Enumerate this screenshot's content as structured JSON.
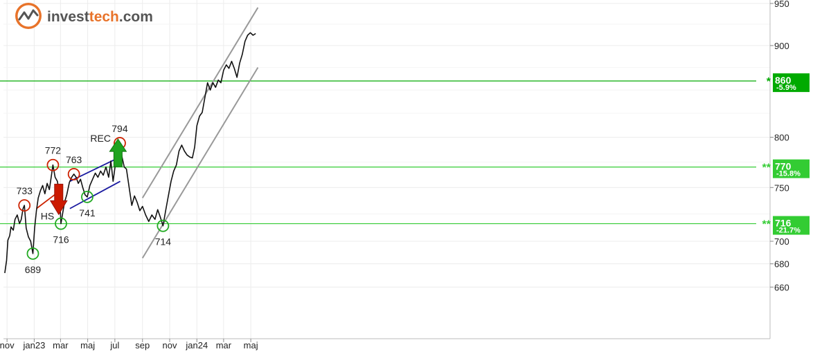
{
  "brand": {
    "name_part1": "invest",
    "name_part2": "tech",
    "name_part3": ".com",
    "color_dark": "#555555",
    "color_accent": "#e8732a"
  },
  "chart_data": {
    "type": "line",
    "y_scale": "log",
    "ylim": [
      640,
      950
    ],
    "y_ticks": [
      {
        "value": 950,
        "label": "950"
      },
      {
        "value": 900,
        "label": "900"
      },
      {
        "value": 800,
        "label": "800"
      },
      {
        "value": 750,
        "label": "750"
      },
      {
        "value": 700,
        "label": "700"
      },
      {
        "value": 680,
        "label": "680"
      },
      {
        "value": 660,
        "label": "660"
      }
    ],
    "x_ticks": [
      {
        "date": "2022-11-01",
        "label": "nov"
      },
      {
        "date": "2023-01-01",
        "label": "jan23"
      },
      {
        "date": "2023-03-01",
        "label": "mar"
      },
      {
        "date": "2023-05-01",
        "label": "maj"
      },
      {
        "date": "2023-07-01",
        "label": "jul"
      },
      {
        "date": "2023-09-01",
        "label": "sep"
      },
      {
        "date": "2023-11-01",
        "label": "nov"
      },
      {
        "date": "2024-01-01",
        "label": "jan24"
      },
      {
        "date": "2024-03-01",
        "label": "mar"
      },
      {
        "date": "2024-05-01",
        "label": "maj"
      }
    ],
    "grid": true,
    "series": [
      {
        "points": [
          [
            "2022-10-27",
            672
          ],
          [
            "2022-10-31",
            683
          ],
          [
            "2022-11-03",
            701
          ],
          [
            "2022-11-07",
            705
          ],
          [
            "2022-11-10",
            713
          ],
          [
            "2022-11-15",
            710
          ],
          [
            "2022-11-19",
            720
          ],
          [
            "2022-11-24",
            724
          ],
          [
            "2022-11-29",
            716
          ],
          [
            "2022-12-03",
            720
          ],
          [
            "2022-12-07",
            730
          ],
          [
            "2022-12-10",
            733
          ],
          [
            "2022-12-14",
            712
          ],
          [
            "2022-12-19",
            704
          ],
          [
            "2022-12-24",
            700
          ],
          [
            "2022-12-29",
            689
          ],
          [
            "2023-01-02",
            712
          ],
          [
            "2023-01-06",
            728
          ],
          [
            "2023-01-10",
            740
          ],
          [
            "2023-01-15",
            747
          ],
          [
            "2023-01-20",
            752
          ],
          [
            "2023-01-25",
            744
          ],
          [
            "2023-01-30",
            754
          ],
          [
            "2023-02-04",
            748
          ],
          [
            "2023-02-08",
            760
          ],
          [
            "2023-02-12",
            772
          ],
          [
            "2023-02-17",
            760
          ],
          [
            "2023-02-22",
            756
          ],
          [
            "2023-02-27",
            742
          ],
          [
            "2023-03-02",
            716
          ],
          [
            "2023-03-06",
            726
          ],
          [
            "2023-03-10",
            736
          ],
          [
            "2023-03-15",
            743
          ],
          [
            "2023-03-21",
            755
          ],
          [
            "2023-03-26",
            760
          ],
          [
            "2023-03-31",
            763
          ],
          [
            "2023-04-05",
            760
          ],
          [
            "2023-04-10",
            754
          ],
          [
            "2023-04-15",
            758
          ],
          [
            "2023-04-20",
            750
          ],
          [
            "2023-04-25",
            743
          ],
          [
            "2023-04-30",
            741
          ],
          [
            "2023-05-06",
            752
          ],
          [
            "2023-05-12",
            758
          ],
          [
            "2023-05-18",
            764
          ],
          [
            "2023-05-24",
            760
          ],
          [
            "2023-05-30",
            766
          ],
          [
            "2023-06-05",
            762
          ],
          [
            "2023-06-11",
            770
          ],
          [
            "2023-06-17",
            760
          ],
          [
            "2023-06-22",
            776
          ],
          [
            "2023-06-27",
            756
          ],
          [
            "2023-07-02",
            772
          ],
          [
            "2023-07-07",
            780
          ],
          [
            "2023-07-12",
            794
          ],
          [
            "2023-07-17",
            780
          ],
          [
            "2023-07-22",
            770
          ],
          [
            "2023-07-27",
            768
          ],
          [
            "2023-08-02",
            750
          ],
          [
            "2023-08-08",
            733
          ],
          [
            "2023-08-14",
            742
          ],
          [
            "2023-08-20",
            736
          ],
          [
            "2023-08-26",
            728
          ],
          [
            "2023-09-01",
            732
          ],
          [
            "2023-09-08",
            724
          ],
          [
            "2023-09-15",
            718
          ],
          [
            "2023-09-22",
            724
          ],
          [
            "2023-09-29",
            720
          ],
          [
            "2023-10-05",
            729
          ],
          [
            "2023-10-11",
            722
          ],
          [
            "2023-10-17",
            714
          ],
          [
            "2023-10-23",
            728
          ],
          [
            "2023-10-29",
            742
          ],
          [
            "2023-11-04",
            756
          ],
          [
            "2023-11-10",
            766
          ],
          [
            "2023-11-16",
            772
          ],
          [
            "2023-11-22",
            786
          ],
          [
            "2023-11-28",
            792
          ],
          [
            "2023-12-04",
            786
          ],
          [
            "2023-12-10",
            782
          ],
          [
            "2023-12-16",
            780
          ],
          [
            "2023-12-22",
            779
          ],
          [
            "2023-12-27",
            790
          ],
          [
            "2024-01-01",
            812
          ],
          [
            "2024-01-07",
            822
          ],
          [
            "2024-01-13",
            826
          ],
          [
            "2024-01-19",
            842
          ],
          [
            "2024-01-25",
            858
          ],
          [
            "2024-01-31",
            850
          ],
          [
            "2024-02-06",
            858
          ],
          [
            "2024-02-12",
            853
          ],
          [
            "2024-02-18",
            861
          ],
          [
            "2024-02-24",
            858
          ],
          [
            "2024-03-01",
            872
          ],
          [
            "2024-03-07",
            878
          ],
          [
            "2024-03-13",
            874
          ],
          [
            "2024-03-19",
            882
          ],
          [
            "2024-03-25",
            874
          ],
          [
            "2024-03-31",
            864
          ],
          [
            "2024-04-06",
            880
          ],
          [
            "2024-04-12",
            890
          ],
          [
            "2024-04-18",
            905
          ],
          [
            "2024-04-24",
            912
          ],
          [
            "2024-04-30",
            915
          ],
          [
            "2024-05-06",
            912
          ],
          [
            "2024-05-12",
            914
          ]
        ]
      }
    ],
    "horizontal_levels": [
      {
        "value": 860,
        "label": "860",
        "change": "-5.9%",
        "stars": "*",
        "color": "#00aa00"
      },
      {
        "value": 770,
        "label": "770",
        "change": "-15.8%",
        "stars": "**",
        "color": "#33cc33"
      },
      {
        "value": 716,
        "label": "716",
        "change": "-21.7%",
        "stars": "**",
        "color": "#33cc33"
      }
    ],
    "pivot_labels": [
      {
        "date": "2022-12-10",
        "value": 733,
        "label": "733",
        "kind": "top"
      },
      {
        "date": "2022-12-29",
        "value": 689,
        "label": "689",
        "kind": "bottom"
      },
      {
        "date": "2023-02-12",
        "value": 772,
        "label": "772",
        "kind": "top"
      },
      {
        "date": "2023-03-02",
        "value": 716,
        "label": "716",
        "kind": "bottom"
      },
      {
        "date": "2023-03-31",
        "value": 763,
        "label": "763",
        "kind": "top"
      },
      {
        "date": "2023-04-30",
        "value": 741,
        "label": "741",
        "kind": "bottom"
      },
      {
        "date": "2023-07-12",
        "value": 794,
        "label": "794",
        "kind": "top"
      },
      {
        "date": "2023-10-17",
        "value": 714,
        "label": "714",
        "kind": "bottom"
      }
    ],
    "pattern_labels": [
      {
        "label": "HS",
        "signal": "sell",
        "date": "2023-02-25",
        "value": 744
      },
      {
        "label": "REC",
        "signal": "buy",
        "date": "2023-07-08",
        "value": 780
      }
    ],
    "trend_lines": [
      {
        "name": "channel-upper",
        "color": "#999999",
        "from": [
          "2023-09-01",
          740
        ],
        "to": [
          "2024-05-17",
          945
        ]
      },
      {
        "name": "channel-lower",
        "color": "#999999",
        "from": [
          "2023-09-01",
          685
        ],
        "to": [
          "2024-05-17",
          875
        ]
      },
      {
        "name": "rect-upper",
        "color": "#1a1aa0",
        "from": [
          "2023-03-22",
          756
        ],
        "to": [
          "2023-07-13",
          780
        ]
      },
      {
        "name": "rect-lower",
        "color": "#1a1aa0",
        "from": [
          "2023-03-22",
          730
        ],
        "to": [
          "2023-07-13",
          756
        ]
      },
      {
        "name": "hs-neckline",
        "color": "#cc2200",
        "from": [
          "2023-01-06",
          730
        ],
        "to": [
          "2023-02-25",
          746
        ]
      }
    ]
  }
}
